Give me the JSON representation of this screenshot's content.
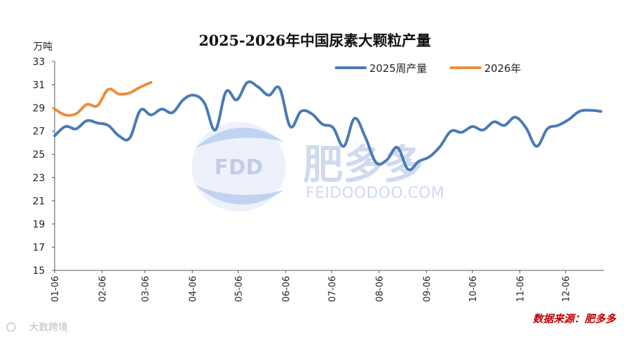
{
  "chart_data": {
    "type": "line",
    "title": "2025-2026年中国尿素大颗粒产量",
    "ylabel": "万吨",
    "xlabel": "",
    "ylim": [
      15,
      33
    ],
    "yticks": [
      15,
      17,
      19,
      21,
      23,
      25,
      27,
      29,
      31,
      33
    ],
    "grid": false,
    "legend_position": "top-right",
    "x_tick_labels": [
      "01-06",
      "02-06",
      "03-06",
      "04-06",
      "05-06",
      "06-06",
      "07-06",
      "08-06",
      "09-06",
      "10-06",
      "11-06",
      "12-06"
    ],
    "series": [
      {
        "name": "2025周产量",
        "color": "#4a7ab5",
        "x": [
          "01-06",
          "01-13",
          "01-20",
          "01-27",
          "02-03",
          "02-10",
          "02-17",
          "02-24",
          "03-03",
          "03-10",
          "03-17",
          "03-24",
          "03-31",
          "04-07",
          "04-14",
          "04-21",
          "04-28",
          "05-05",
          "05-12",
          "05-19",
          "05-26",
          "06-02",
          "06-09",
          "06-16",
          "06-23",
          "06-30",
          "07-07",
          "07-14",
          "07-21",
          "07-28",
          "08-04",
          "08-11",
          "08-18",
          "08-25",
          "09-01",
          "09-08",
          "09-15",
          "09-22",
          "09-29",
          "10-06",
          "10-13",
          "10-20",
          "10-27",
          "11-03",
          "11-10",
          "11-17",
          "11-24",
          "12-01",
          "12-08",
          "12-15",
          "12-22",
          "12-29"
        ],
        "values": [
          26.6,
          27.4,
          27.2,
          27.9,
          27.7,
          27.5,
          26.6,
          26.4,
          28.8,
          28.4,
          28.9,
          28.6,
          29.7,
          30.1,
          29.4,
          27.1,
          30.4,
          29.7,
          31.2,
          30.8,
          30.1,
          30.7,
          27.4,
          28.7,
          28.5,
          27.6,
          27.3,
          25.7,
          28.1,
          26.5,
          24.3,
          24.5,
          25.6,
          23.7,
          24.4,
          24.8,
          25.7,
          27.0,
          26.9,
          27.4,
          27.1,
          27.8,
          27.5,
          28.2,
          27.3,
          25.7,
          27.2,
          27.5,
          28.0,
          28.7,
          28.8,
          28.7
        ],
        "start_year": 2025,
        "week_label": "周"
      },
      {
        "name": "2026年",
        "color": "#ed8c3a",
        "x": [
          "01-06",
          "01-13",
          "01-20",
          "01-27",
          "02-03",
          "02-10",
          "02-17",
          "02-24",
          "03-03",
          "03-10"
        ],
        "values": [
          28.9,
          28.4,
          28.5,
          29.3,
          29.2,
          30.6,
          30.2,
          30.3,
          30.8,
          31.2
        ]
      }
    ]
  },
  "watermark": {
    "logo_text": "FDD",
    "brand_cn": "肥多多",
    "brand_url": "FEIDOODOO.COM"
  },
  "source_note": "数据来源：肥多多",
  "corner_mark": "大数跨境"
}
